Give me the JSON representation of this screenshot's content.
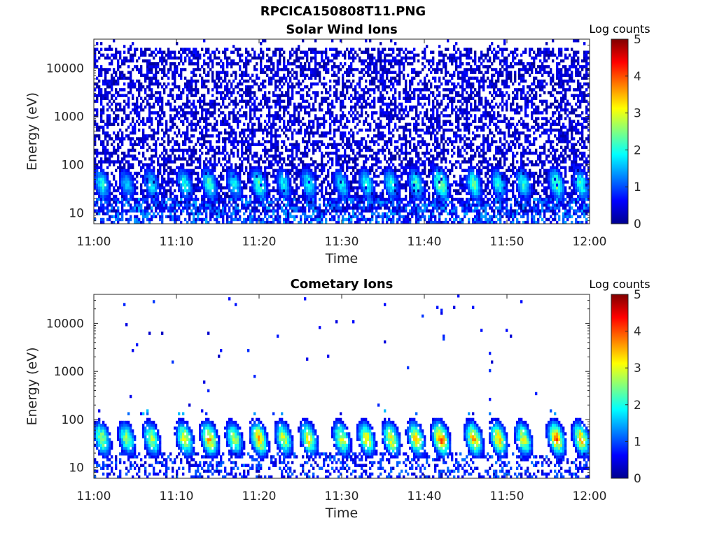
{
  "figure": {
    "title": "RPCICA150808T11.PNG"
  },
  "chart_data": [
    {
      "type": "heatmap",
      "title": "Solar Wind Ions",
      "xlabel": "Time",
      "ylabel": "Energy (eV)",
      "x_ticks": [
        "11:00",
        "11:10",
        "11:20",
        "11:30",
        "11:40",
        "11:50",
        "12:00"
      ],
      "x_range": [
        "11:00",
        "12:00"
      ],
      "y_scale": "log",
      "y_ticks": [
        10,
        100,
        1000,
        10000
      ],
      "y_tick_labels": [
        "10",
        "100",
        "1000",
        "10000"
      ],
      "ylim": [
        6,
        40000
      ],
      "colorbar": {
        "label": "Log counts",
        "min": 0,
        "max": 5,
        "ticks": [
          "0",
          "1",
          "2",
          "3",
          "4",
          "5"
        ],
        "colormap": "jet"
      },
      "background_noise": "dense speckle of 1-2 log counts across 10-20000 eV",
      "peak_energy_eV": 40,
      "bursts": [
        {
          "time": "11:01",
          "peak_log_counts": 2.2
        },
        {
          "time": "11:04",
          "peak_log_counts": 1.8
        },
        {
          "time": "11:07",
          "peak_log_counts": 2.0
        },
        {
          "time": "11:11",
          "peak_log_counts": 2.2
        },
        {
          "time": "11:14",
          "peak_log_counts": 2.4
        },
        {
          "time": "11:17",
          "peak_log_counts": 2.0
        },
        {
          "time": "11:20",
          "peak_log_counts": 2.5
        },
        {
          "time": "11:23",
          "peak_log_counts": 2.0
        },
        {
          "time": "11:26",
          "peak_log_counts": 2.2
        },
        {
          "time": "11:30",
          "peak_log_counts": 2.0
        },
        {
          "time": "11:33",
          "peak_log_counts": 2.2
        },
        {
          "time": "11:36",
          "peak_log_counts": 2.2
        },
        {
          "time": "11:39",
          "peak_log_counts": 2.3
        },
        {
          "time": "11:42",
          "peak_log_counts": 2.8
        },
        {
          "time": "11:46",
          "peak_log_counts": 2.5
        },
        {
          "time": "11:49",
          "peak_log_counts": 2.2
        },
        {
          "time": "11:52",
          "peak_log_counts": 2.2
        },
        {
          "time": "11:56",
          "peak_log_counts": 2.6
        },
        {
          "time": "11:59",
          "peak_log_counts": 2.3
        }
      ]
    },
    {
      "type": "heatmap",
      "title": "Cometary Ions",
      "xlabel": "Time",
      "ylabel": "Energy (eV)",
      "x_ticks": [
        "11:00",
        "11:10",
        "11:20",
        "11:30",
        "11:40",
        "11:50",
        "12:00"
      ],
      "x_range": [
        "11:00",
        "12:00"
      ],
      "y_scale": "log",
      "y_ticks": [
        10,
        100,
        1000,
        10000
      ],
      "y_tick_labels": [
        "10",
        "100",
        "1000",
        "10000"
      ],
      "ylim": [
        6,
        40000
      ],
      "colorbar": {
        "label": "Log counts",
        "min": 0,
        "max": 5,
        "ticks": [
          "0",
          "1",
          "2",
          "3",
          "4",
          "5"
        ],
        "colormap": "jet"
      },
      "background_noise": "sparse isolated counts above 200 eV",
      "peak_energy_eV": 40,
      "bursts": [
        {
          "time": "11:01",
          "peak_log_counts": 3.0
        },
        {
          "time": "11:04",
          "peak_log_counts": 2.8
        },
        {
          "time": "11:07",
          "peak_log_counts": 3.0
        },
        {
          "time": "11:11",
          "peak_log_counts": 3.4
        },
        {
          "time": "11:14",
          "peak_log_counts": 3.8
        },
        {
          "time": "11:17",
          "peak_log_counts": 3.0
        },
        {
          "time": "11:20",
          "peak_log_counts": 3.8
        },
        {
          "time": "11:23",
          "peak_log_counts": 3.2
        },
        {
          "time": "11:26",
          "peak_log_counts": 3.4
        },
        {
          "time": "11:30",
          "peak_log_counts": 3.2
        },
        {
          "time": "11:33",
          "peak_log_counts": 3.4
        },
        {
          "time": "11:36",
          "peak_log_counts": 3.4
        },
        {
          "time": "11:39",
          "peak_log_counts": 3.5
        },
        {
          "time": "11:42",
          "peak_log_counts": 4.2
        },
        {
          "time": "11:46",
          "peak_log_counts": 3.8
        },
        {
          "time": "11:49",
          "peak_log_counts": 3.6
        },
        {
          "time": "11:52",
          "peak_log_counts": 3.2
        },
        {
          "time": "11:56",
          "peak_log_counts": 4.0
        },
        {
          "time": "11:59",
          "peak_log_counts": 3.6
        }
      ]
    }
  ]
}
